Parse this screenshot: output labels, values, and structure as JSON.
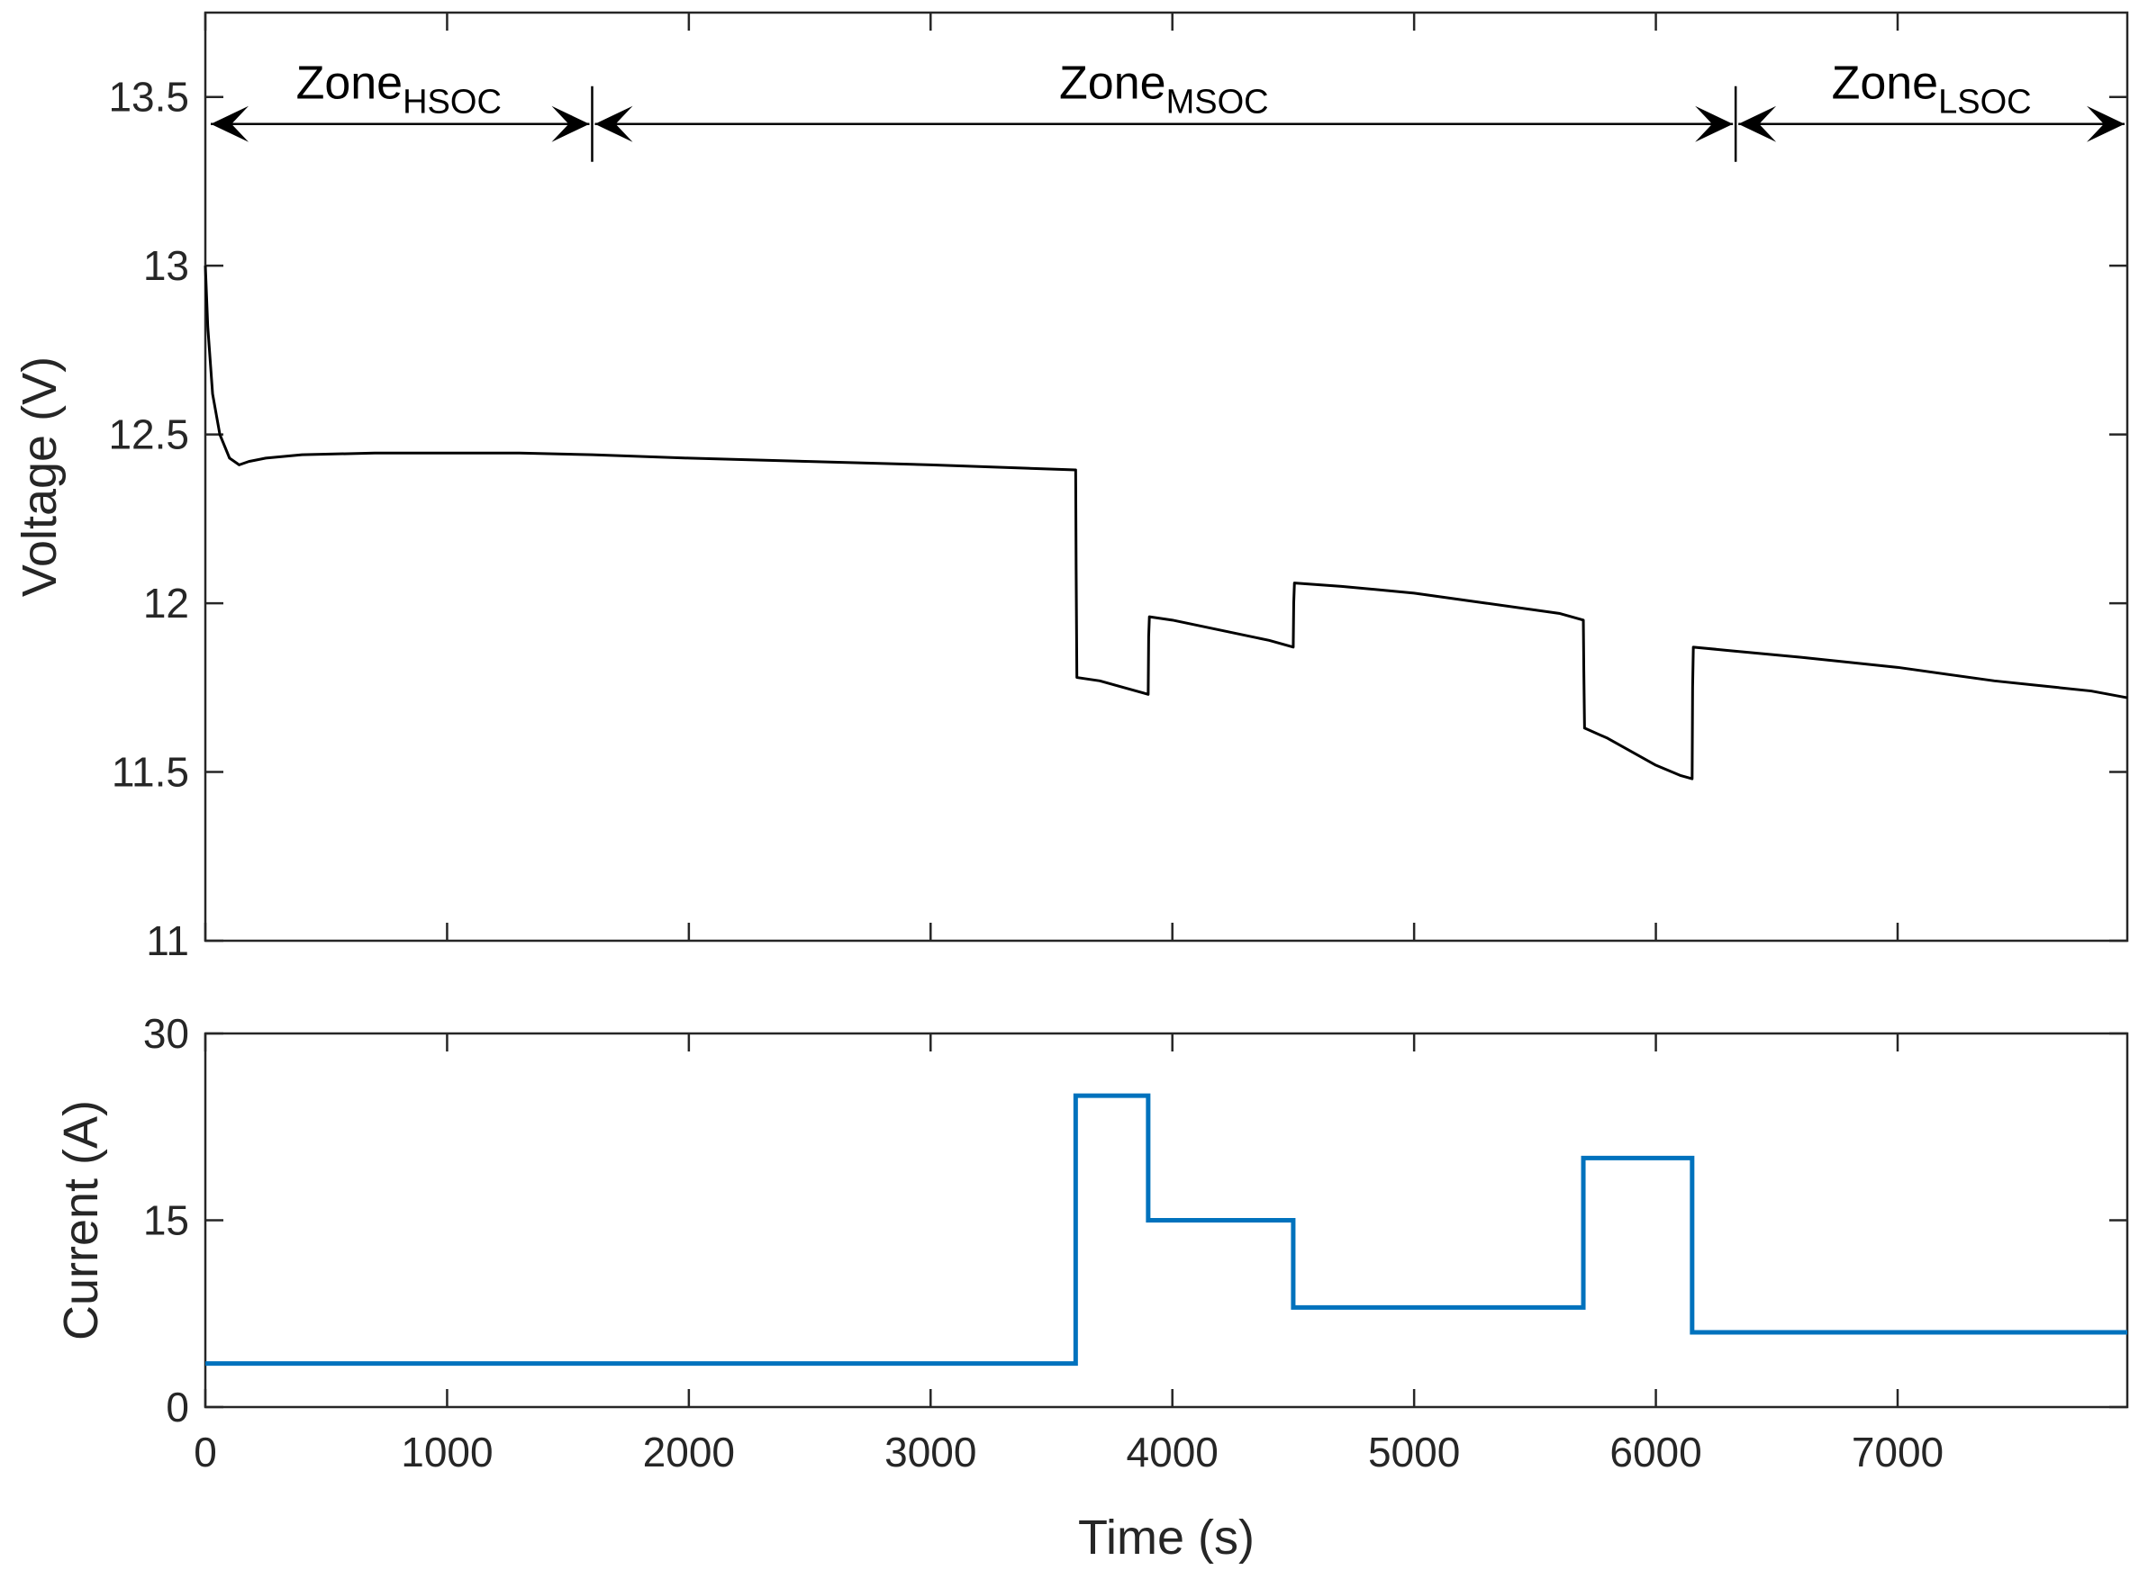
{
  "chart_data": [
    {
      "type": "line",
      "panel": "top",
      "ylabel": "Voltage (V)",
      "xlabel": "",
      "xlim": [
        0,
        7950
      ],
      "ylim": [
        11,
        13.75
      ],
      "yticks": [
        11,
        11.5,
        12,
        12.5,
        13,
        13.5
      ],
      "ytick_labels": [
        "11",
        "11.5",
        "12",
        "12.5",
        "13",
        "13.5"
      ],
      "series": [
        {
          "name": "Voltage",
          "color": "#000000",
          "x": [
            0,
            10,
            30,
            60,
            100,
            140,
            180,
            250,
            400,
            700,
            1000,
            1300,
            1600,
            2000,
            2500,
            3000,
            3400,
            3600,
            3602,
            3605,
            3700,
            3800,
            3900,
            3902,
            3905,
            4000,
            4200,
            4400,
            4500,
            4502,
            4505,
            4700,
            5000,
            5300,
            5600,
            5700,
            5702,
            5705,
            5800,
            5900,
            6000,
            6100,
            6150,
            6152,
            6155,
            6300,
            6600,
            7000,
            7400,
            7800,
            7950
          ],
          "y": [
            13.0,
            12.82,
            12.62,
            12.5,
            12.43,
            12.41,
            12.42,
            12.43,
            12.44,
            12.445,
            12.445,
            12.445,
            12.44,
            12.43,
            12.42,
            12.41,
            12.4,
            12.395,
            12.1,
            11.78,
            11.77,
            11.75,
            11.73,
            11.9,
            11.96,
            11.95,
            11.92,
            11.89,
            11.87,
            12.0,
            12.06,
            12.05,
            12.03,
            12.0,
            11.97,
            11.95,
            11.8,
            11.63,
            11.6,
            11.56,
            11.52,
            11.49,
            11.48,
            11.75,
            11.87,
            11.86,
            11.84,
            11.81,
            11.77,
            11.74,
            11.72
          ]
        }
      ],
      "annotations": [
        {
          "label": "Zone",
          "subscript": "HSOC",
          "x_start": 0,
          "x_end": 1600
        },
        {
          "label": "Zone",
          "subscript": "MSOC",
          "x_start": 1600,
          "x_end": 6330
        },
        {
          "label": "Zone",
          "subscript": "LSOC",
          "x_start": 6330,
          "x_end": 7950
        }
      ],
      "annotation_y": 13.42,
      "grid": false
    },
    {
      "type": "line",
      "panel": "bottom",
      "ylabel": "Current (A)",
      "xlabel": "Time (s)",
      "xlim": [
        0,
        7950
      ],
      "ylim": [
        0,
        30
      ],
      "yticks": [
        0,
        15,
        30
      ],
      "ytick_labels": [
        "0",
        "15",
        "30"
      ],
      "xticks": [
        0,
        1000,
        2000,
        3000,
        4000,
        5000,
        6000,
        7000
      ],
      "xtick_labels": [
        "0",
        "1000",
        "2000",
        "3000",
        "4000",
        "5000",
        "6000",
        "7000"
      ],
      "series": [
        {
          "name": "Current",
          "color": "#0072BD",
          "x": [
            0,
            3600,
            3600,
            3900,
            3900,
            4500,
            4500,
            5700,
            5700,
            6150,
            6150,
            7950
          ],
          "y": [
            3.5,
            3.5,
            25,
            25,
            15,
            15,
            8,
            8,
            20,
            20,
            6,
            6
          ]
        }
      ],
      "grid": false
    }
  ]
}
